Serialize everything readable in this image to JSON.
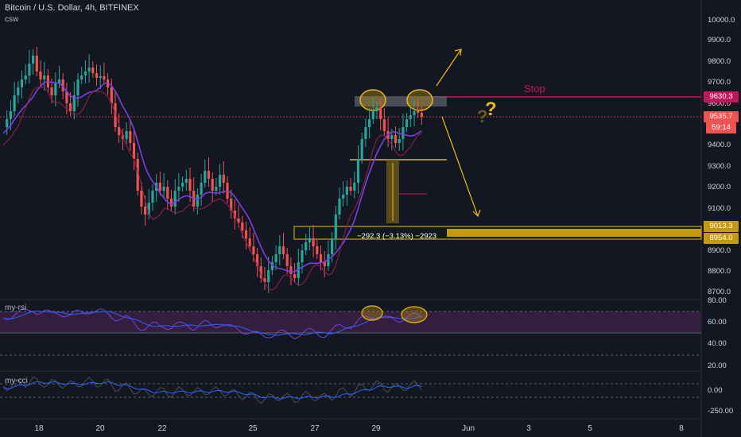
{
  "header": {
    "title": "Bitcoin / U.S. Dollar, 4h, BITFINEX",
    "indicator": "csw"
  },
  "panes": {
    "rsi_label": "my-rsi",
    "cci_label": "my-cci"
  },
  "price_axis": {
    "ticks": [
      "10000.0",
      "9900.0",
      "9800.0",
      "9700.0",
      "9600.0",
      "9400.0",
      "9300.0",
      "9200.0",
      "9100.0",
      "9000.0",
      "8900.0",
      "8800.0",
      "8700.0"
    ]
  },
  "rsi_axis": {
    "ticks": [
      "80.00",
      "60.00",
      "40.00",
      "20.00"
    ]
  },
  "cci_axis": {
    "ticks": [
      "0.00",
      "-250.00"
    ]
  },
  "time_axis": {
    "ticks": [
      "18",
      "20",
      "22",
      "25",
      "27",
      "29",
      "Jun",
      "3",
      "5",
      "8"
    ]
  },
  "badges": {
    "stop_level": "9630.3",
    "last_price": "9535.7",
    "countdown": "59:14",
    "support_upper": "9013.3",
    "support_lower": "8954.0"
  },
  "annotations": {
    "stop_text": "Stop",
    "question_mark": "?",
    "measure_text": "−292.3 (−3.13%) −2923"
  },
  "colors": {
    "background": "#131722",
    "bull": "#26a69a",
    "bear": "#ef5350",
    "stop_line": "#c2185b",
    "support": "#f0b90b",
    "ma": "#7b3fe4",
    "rsi_band": "#3a2142"
  }
}
